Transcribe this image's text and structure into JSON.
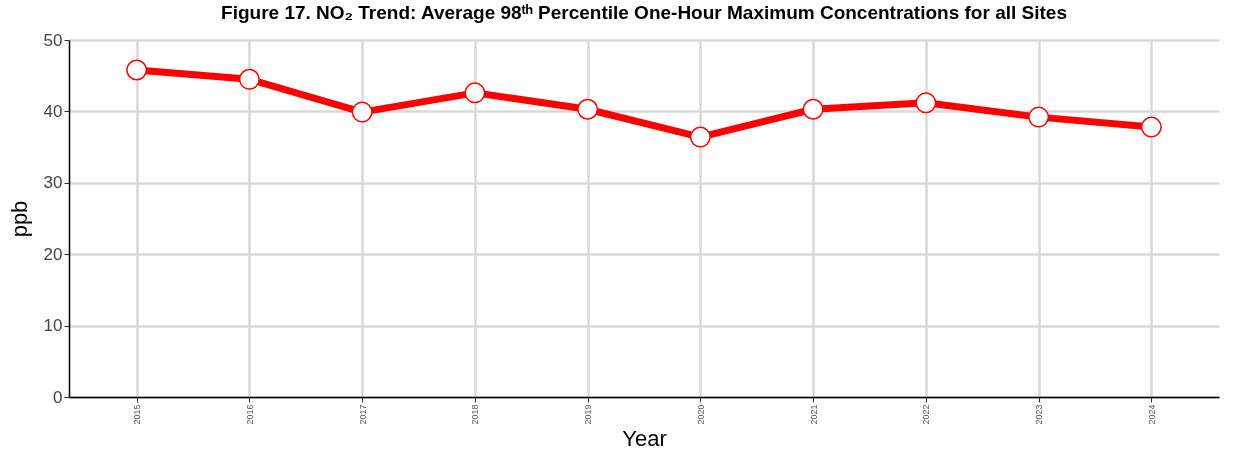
{
  "chart_data": {
    "type": "line",
    "title": "Figure 17. NO₂ Trend: Average 98ᵗʰ Percentile One-Hour Maximum Concentrations for all Sites",
    "xlabel": "Year",
    "ylabel": "ppb",
    "categories": [
      "2015",
      "2016",
      "2017",
      "2018",
      "2019",
      "2020",
      "2021",
      "2022",
      "2023",
      "2024"
    ],
    "series": [
      {
        "color": "#ff0000",
        "values": [
          45.8,
          44.5,
          39.9,
          42.6,
          40.3,
          36.4,
          40.3,
          41.2,
          39.2,
          37.8
        ]
      }
    ],
    "ylim": [
      0,
      50
    ],
    "yticks": [
      0,
      10,
      20,
      30,
      40,
      50
    ],
    "grid": true,
    "marker": "circle",
    "line_style": "solid"
  }
}
